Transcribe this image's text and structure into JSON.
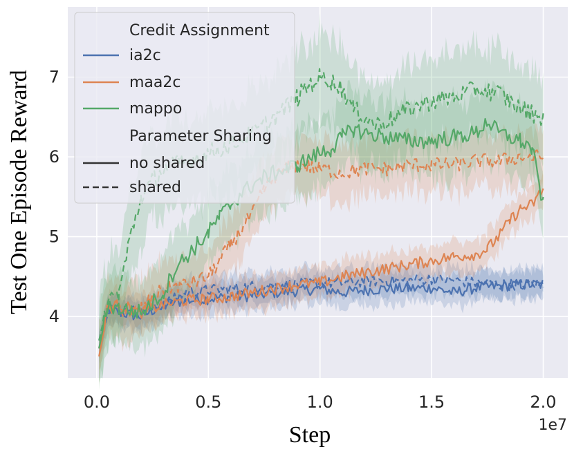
{
  "chart_data": {
    "type": "line",
    "xlabel": "Step",
    "ylabel": "Test One Episode Reward",
    "x_offset_label": "1e7",
    "xlim": [
      -0.13,
      2.11
    ],
    "ylim": [
      3.23,
      7.88
    ],
    "xticks": [
      0.0,
      0.5,
      1.0,
      1.5,
      2.0
    ],
    "xtick_labels": [
      "0.0",
      "0.5",
      "1.0",
      "1.5",
      "2.0"
    ],
    "yticks": [
      4,
      5,
      6,
      7
    ],
    "ytick_labels": [
      "4",
      "5",
      "6",
      "7"
    ],
    "grid": true,
    "legend": {
      "position": "top-left",
      "hue_title": "Credit Assignment",
      "style_title": "Parameter Sharing",
      "hue_entries": [
        {
          "label": "ia2c",
          "color": "#4c72b0"
        },
        {
          "label": "maa2c",
          "color": "#dd8452"
        },
        {
          "label": "mappo",
          "color": "#55a868"
        }
      ],
      "style_entries": [
        {
          "label": "no shared",
          "dash": "solid"
        },
        {
          "label": "shared",
          "dash": "dashed"
        }
      ]
    },
    "series": [
      {
        "name": "ia2c",
        "sharing": "no shared",
        "color": "#4c72b0",
        "dash": "solid",
        "x": [
          0.01,
          0.05,
          0.1,
          0.2,
          0.3,
          0.4,
          0.5,
          0.6,
          0.7,
          0.8,
          0.9,
          1.0,
          1.1,
          1.2,
          1.3,
          1.4,
          1.5,
          1.6,
          1.7,
          1.8,
          1.9,
          2.0
        ],
        "y": [
          3.6,
          4.1,
          4.05,
          4.0,
          4.15,
          4.2,
          4.22,
          4.25,
          4.26,
          4.3,
          4.32,
          4.35,
          4.3,
          4.33,
          4.35,
          4.35,
          4.36,
          4.3,
          4.36,
          4.38,
          4.4,
          4.4
        ],
        "band": 0.18
      },
      {
        "name": "ia2c",
        "sharing": "shared",
        "color": "#4c72b0",
        "dash": "dashed",
        "x": [
          0.01,
          0.05,
          0.1,
          0.2,
          0.3,
          0.4,
          0.5,
          0.6,
          0.7,
          0.8,
          0.9,
          1.0,
          1.1,
          1.2,
          1.3,
          1.4,
          1.5,
          1.6,
          1.7,
          1.8,
          1.9,
          2.0
        ],
        "y": [
          3.7,
          4.1,
          4.1,
          4.05,
          4.15,
          4.3,
          4.33,
          4.35,
          4.38,
          4.4,
          4.4,
          4.42,
          4.42,
          4.44,
          4.45,
          4.45,
          4.47,
          4.45,
          4.42,
          4.4,
          4.4,
          4.4
        ],
        "band": 0.18
      },
      {
        "name": "maa2c",
        "sharing": "no shared",
        "color": "#dd8452",
        "dash": "solid",
        "x": [
          0.01,
          0.05,
          0.1,
          0.2,
          0.3,
          0.4,
          0.5,
          0.6,
          0.7,
          0.8,
          0.9,
          1.0,
          1.1,
          1.2,
          1.3,
          1.4,
          1.5,
          1.6,
          1.7,
          1.75,
          1.8,
          1.85,
          1.9,
          1.95,
          2.0
        ],
        "y": [
          3.5,
          4.1,
          4.15,
          4.05,
          4.15,
          4.2,
          4.22,
          4.25,
          4.3,
          4.35,
          4.4,
          4.42,
          4.5,
          4.55,
          4.6,
          4.65,
          4.7,
          4.75,
          4.78,
          4.85,
          5.0,
          5.2,
          5.35,
          5.4,
          5.6
        ],
        "band": 0.2
      },
      {
        "name": "maa2c",
        "sharing": "shared",
        "color": "#dd8452",
        "dash": "dashed",
        "x": [
          0.01,
          0.05,
          0.1,
          0.15,
          0.2,
          0.3,
          0.4,
          0.5,
          0.55,
          0.6,
          0.65,
          0.7,
          0.75,
          0.8,
          0.85,
          0.9,
          1.0,
          1.1,
          1.2,
          1.3,
          1.4,
          1.5,
          1.6,
          1.7,
          1.8,
          1.9,
          2.0
        ],
        "y": [
          3.6,
          4.1,
          4.1,
          4.05,
          4.1,
          4.35,
          4.4,
          4.5,
          4.7,
          4.9,
          5.1,
          5.3,
          5.6,
          5.75,
          5.85,
          5.9,
          5.85,
          5.8,
          5.85,
          5.85,
          5.9,
          5.9,
          5.9,
          5.95,
          5.95,
          6.0,
          6.0
        ],
        "band": 0.35
      },
      {
        "name": "mappo",
        "sharing": "no shared",
        "color": "#55a868",
        "dash": "solid",
        "x": [
          0.01,
          0.05,
          0.1,
          0.2,
          0.3,
          0.35,
          0.4,
          0.45,
          0.5,
          0.55,
          0.6,
          0.65,
          0.7,
          0.75,
          0.8,
          0.85,
          0.9,
          1.0,
          1.05,
          1.1,
          1.15,
          1.2,
          1.3,
          1.4,
          1.5,
          1.6,
          1.7,
          1.75,
          1.8,
          1.9,
          1.95,
          2.0
        ],
        "y": [
          3.6,
          4.15,
          4.1,
          4.05,
          4.3,
          4.6,
          4.75,
          4.9,
          5.05,
          5.25,
          5.4,
          5.55,
          5.65,
          5.75,
          5.8,
          5.85,
          5.9,
          6.05,
          6.1,
          6.25,
          6.35,
          6.3,
          6.25,
          6.2,
          6.2,
          6.25,
          6.3,
          6.45,
          6.3,
          6.2,
          6.1,
          5.4
        ],
        "band": 0.45
      },
      {
        "name": "mappo",
        "sharing": "shared",
        "color": "#55a868",
        "dash": "dashed",
        "x": [
          0.01,
          0.05,
          0.1,
          0.15,
          0.2,
          0.25,
          0.3,
          0.4,
          0.5,
          0.6,
          0.7,
          0.8,
          0.9,
          0.95,
          1.0,
          1.05,
          1.1,
          1.15,
          1.2,
          1.25,
          1.3,
          1.4,
          1.5,
          1.6,
          1.7,
          1.8,
          1.9,
          1.95,
          2.0
        ],
        "y": [
          3.7,
          4.2,
          4.3,
          5.0,
          5.5,
          5.7,
          5.85,
          5.95,
          6.05,
          6.15,
          6.3,
          6.5,
          6.75,
          6.9,
          7.0,
          6.95,
          6.85,
          6.6,
          6.5,
          6.4,
          6.45,
          6.6,
          6.7,
          6.75,
          6.85,
          6.8,
          6.6,
          6.55,
          6.5
        ],
        "band": 0.55
      }
    ]
  }
}
